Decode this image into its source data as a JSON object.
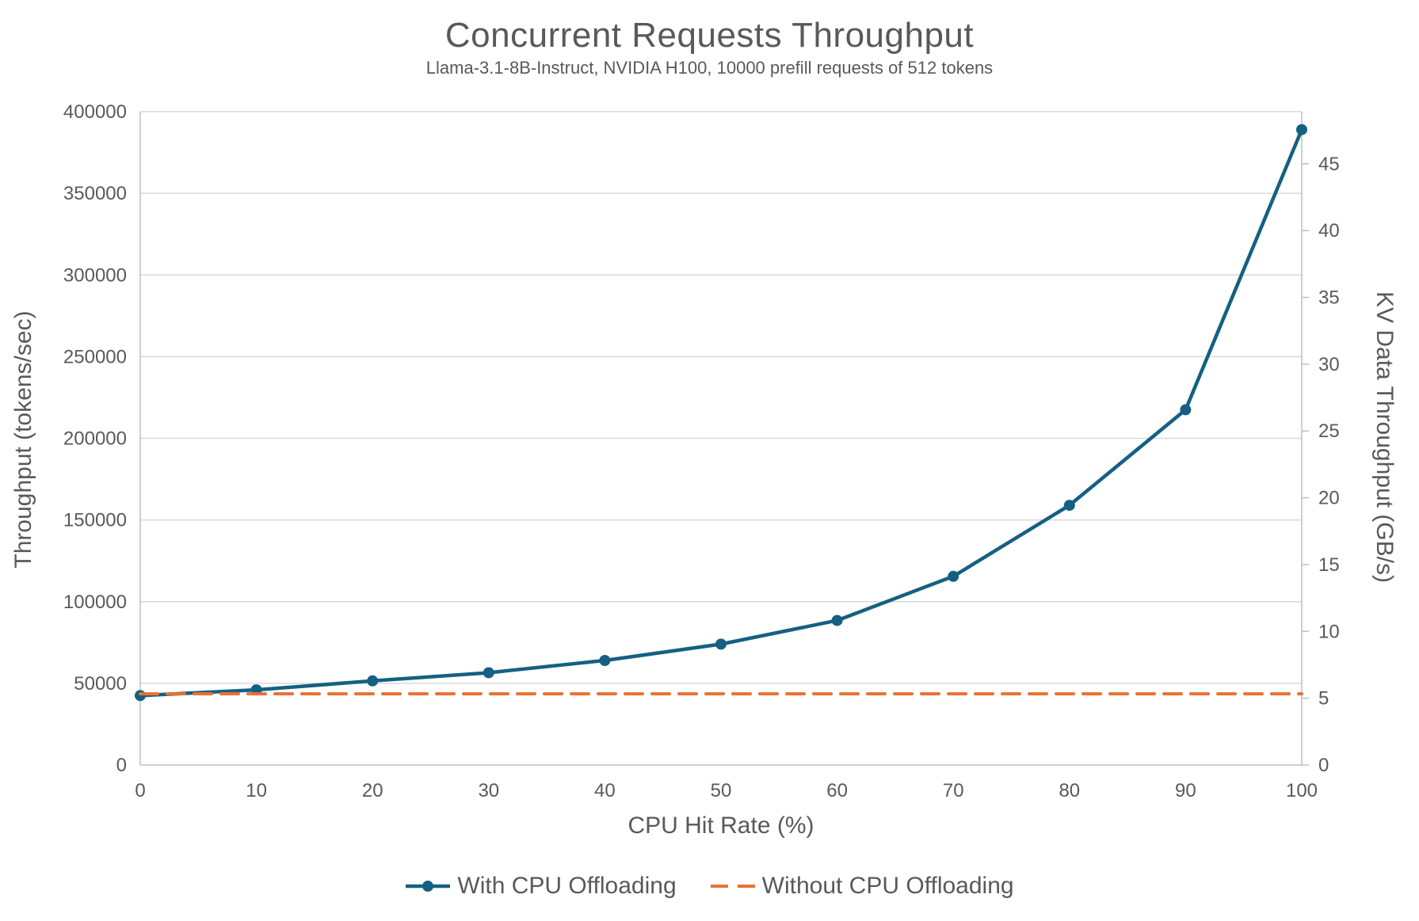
{
  "chart_data": {
    "type": "line",
    "title": "Concurrent Requests Throughput",
    "subtitle": "Llama-3.1-8B-Instruct, NVIDIA H100, 10000 prefill requests of 512 tokens",
    "xlabel": "CPU Hit Rate (%)",
    "ylabel_left": "Throughput (tokens/sec)",
    "ylabel_right": "KV Data Throughput (GB/s)",
    "x": [
      0,
      10,
      20,
      30,
      40,
      50,
      60,
      70,
      80,
      90,
      100
    ],
    "x_range": [
      0,
      100
    ],
    "x_ticks": [
      0,
      10,
      20,
      30,
      40,
      50,
      60,
      70,
      80,
      90,
      100
    ],
    "y_left_range": [
      0,
      400000
    ],
    "y_left_ticks": [
      0,
      50000,
      100000,
      150000,
      200000,
      250000,
      300000,
      350000,
      400000
    ],
    "y_right_range": [
      0,
      48.9
    ],
    "y_right_ticks": [
      0,
      5,
      10,
      15,
      20,
      25,
      30,
      35,
      40,
      45
    ],
    "grid": "horizontal-only",
    "legend_position": "bottom-center",
    "series": [
      {
        "name": "With CPU Offloading",
        "color": "#156082",
        "style": "solid",
        "marker": "circle",
        "values": [
          42500,
          46000,
          51500,
          56500,
          64000,
          74000,
          88500,
          115500,
          159000,
          217500,
          389000
        ]
      },
      {
        "name": "Without CPU Offloading",
        "color": "#E97132",
        "style": "dashed",
        "marker": "none",
        "values": [
          43600,
          43600,
          43600,
          43600,
          43600,
          43600,
          43600,
          43600,
          43600,
          43600,
          43600
        ]
      }
    ]
  },
  "colors": {
    "gridline": "#D9D9D9",
    "axis_line": "#BFBFBF",
    "text": "#595959",
    "background": "#FFFFFF"
  }
}
